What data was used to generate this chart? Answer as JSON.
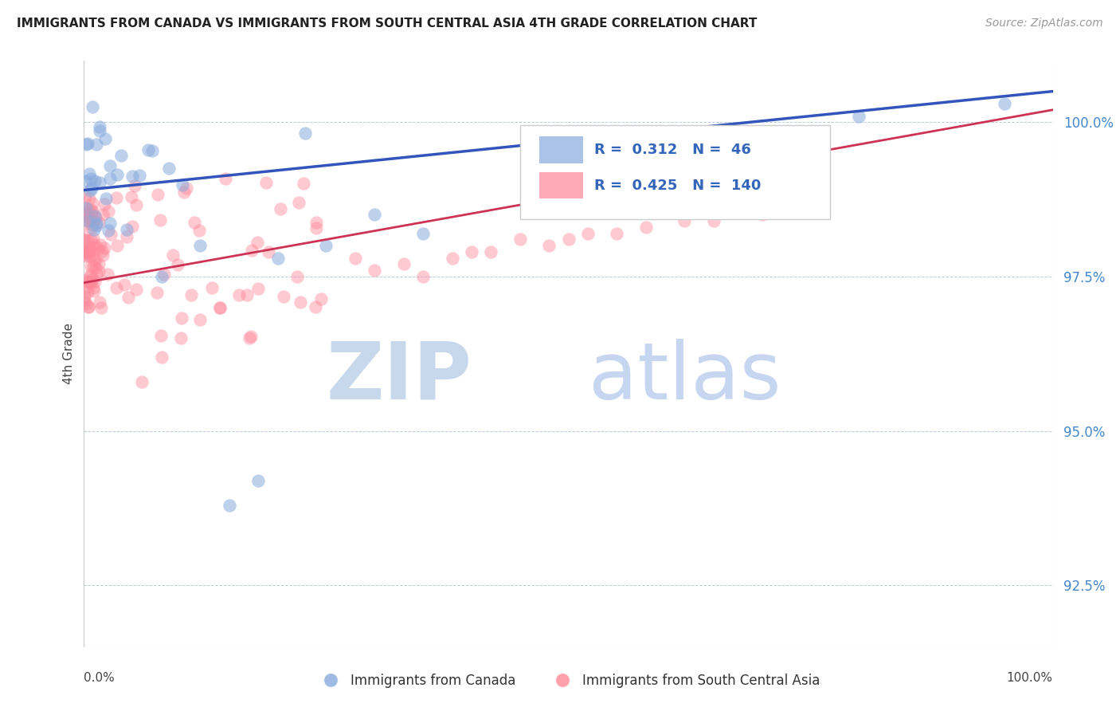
{
  "title": "IMMIGRANTS FROM CANADA VS IMMIGRANTS FROM SOUTH CENTRAL ASIA 4TH GRADE CORRELATION CHART",
  "source": "Source: ZipAtlas.com",
  "ylabel": "4th Grade",
  "legend_label1": "Immigrants from Canada",
  "legend_label2": "Immigrants from South Central Asia",
  "R1": 0.312,
  "N1": 46,
  "R2": 0.425,
  "N2": 140,
  "color1": "#88AADD",
  "color2": "#FF8899",
  "trendline1_color": "#3355BB",
  "trendline2_color": "#CC3355",
  "ytick_values": [
    92.5,
    95.0,
    97.5,
    100.0
  ],
  "ytick_labels": [
    "92.5%",
    "95.0%",
    "97.5%",
    "100.0%"
  ],
  "xmin": 0.0,
  "xmax": 100.0,
  "ymin": 91.5,
  "ymax": 101.0,
  "trendline1_x0": 0.0,
  "trendline1_y0": 98.9,
  "trendline1_x1": 100.0,
  "trendline1_y1": 100.5,
  "trendline2_x0": 0.0,
  "trendline2_y0": 97.4,
  "trendline2_x1": 100.0,
  "trendline2_y1": 100.2
}
